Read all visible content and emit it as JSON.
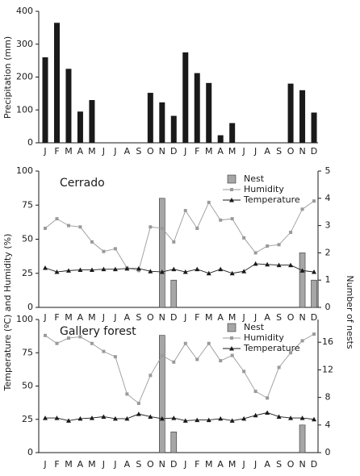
{
  "chart_data": [
    {
      "type": "bar",
      "ylabel": "Precipitation (mm)",
      "categories": [
        "J",
        "F",
        "M",
        "A",
        "M",
        "J",
        "J",
        "A",
        "S",
        "O",
        "N",
        "D",
        "J",
        "F",
        "M",
        "A",
        "M",
        "J",
        "J",
        "A",
        "S",
        "O",
        "N",
        "D"
      ],
      "series": [
        {
          "color": "#1a1a1a",
          "values": [
            260,
            365,
            225,
            95,
            130,
            0,
            0,
            0,
            0,
            152,
            123,
            82,
            275,
            212,
            182,
            23,
            60,
            0,
            0,
            0,
            0,
            180,
            160,
            92
          ]
        }
      ],
      "ylim": [
        0,
        400
      ],
      "yticks": [
        0,
        100,
        200,
        300,
        400
      ]
    },
    {
      "type": "combo",
      "title": "Cerrado",
      "ylabel": "Temperature (ºC) and Humidity (%)",
      "y2label": "Number of nests",
      "legend": "top-right",
      "categories": [
        "J",
        "F",
        "M",
        "A",
        "M",
        "J",
        "J",
        "A",
        "S",
        "O",
        "N",
        "D",
        "J",
        "F",
        "M",
        "A",
        "M",
        "J",
        "J",
        "A",
        "S",
        "O",
        "N",
        "D"
      ],
      "series": [
        {
          "name": "Nest",
          "kind": "bar",
          "axis": "y2",
          "color": "#a6a6a6",
          "values": [
            0,
            0,
            0,
            0,
            0,
            0,
            0,
            0,
            0,
            0,
            4,
            1,
            0,
            0,
            0,
            0,
            0,
            0,
            0,
            0,
            0,
            0,
            2,
            1
          ]
        },
        {
          "name": "Humidity",
          "kind": "line",
          "marker": "square",
          "color": "#9a9a9a",
          "values": [
            58,
            65,
            60,
            59,
            48,
            41,
            43,
            29,
            27,
            59,
            58,
            48,
            71,
            58,
            77,
            64,
            65,
            51,
            40,
            45,
            46,
            55,
            72,
            78
          ]
        },
        {
          "name": "Temperature",
          "kind": "line",
          "marker": "triangle",
          "color": "#1a1a1a",
          "values": [
            29,
            26,
            27,
            27.5,
            27.5,
            28,
            28,
            28.5,
            28.5,
            26.5,
            26,
            28,
            26,
            28,
            25,
            28,
            25,
            26.5,
            32,
            31.5,
            31,
            31,
            27,
            26
          ]
        }
      ],
      "ylim": [
        0,
        100
      ],
      "yticks": [
        0,
        25,
        50,
        75,
        100
      ],
      "y2lim": [
        0,
        5
      ],
      "y2ticks": [
        0,
        1,
        2,
        3,
        4,
        5
      ]
    },
    {
      "type": "combo",
      "title": "Gallery forest",
      "legend": "top-right",
      "categories": [
        "J",
        "F",
        "M",
        "A",
        "M",
        "J",
        "J",
        "A",
        "S",
        "O",
        "N",
        "D",
        "J",
        "F",
        "M",
        "A",
        "M",
        "J",
        "J",
        "A",
        "S",
        "O",
        "N",
        "D"
      ],
      "series": [
        {
          "name": "Nest",
          "kind": "bar",
          "axis": "y2",
          "color": "#a6a6a6",
          "values": [
            0,
            0,
            0,
            0,
            0,
            0,
            0,
            0,
            0,
            0,
            17,
            3,
            0,
            0,
            0,
            0,
            0,
            0,
            0,
            0,
            0,
            0,
            4,
            0
          ]
        },
        {
          "name": "Humidity",
          "kind": "line",
          "marker": "square",
          "color": "#9a9a9a",
          "values": [
            88,
            82,
            86,
            87,
            82,
            76,
            72,
            44,
            37,
            58,
            73,
            68,
            82,
            70,
            82,
            69,
            73,
            61,
            46,
            41,
            64,
            75,
            84,
            89
          ]
        },
        {
          "name": "Temperature",
          "kind": "line",
          "marker": "triangle",
          "color": "#1a1a1a",
          "values": [
            26,
            26,
            24,
            25.5,
            26,
            27,
            25.5,
            25.5,
            29,
            27,
            25.5,
            26,
            24,
            24.5,
            24.5,
            25.5,
            24,
            25.5,
            28,
            30,
            27,
            26,
            26,
            25
          ]
        }
      ],
      "ylim": [
        0,
        100
      ],
      "yticks": [
        0,
        25,
        50,
        75,
        100
      ],
      "y2lim": [
        0,
        19.3
      ],
      "y2ticks": [
        0,
        4,
        8,
        12,
        16
      ]
    }
  ]
}
